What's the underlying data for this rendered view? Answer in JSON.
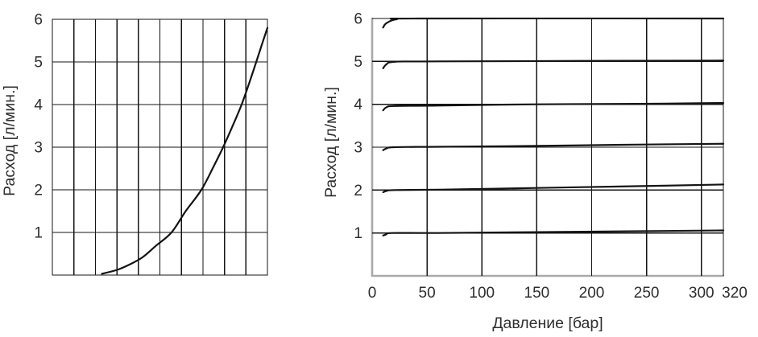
{
  "page": {
    "background": "#ffffff"
  },
  "colors": {
    "grid": "#141414",
    "curve": "#141414",
    "axis_gray": "#a9a9a9",
    "text": "#2e2e2e"
  },
  "chart_data": [
    {
      "id": "flow-curve-chart",
      "type": "line",
      "title": "",
      "xlabel": "",
      "ylabel": "Расход [л/мин.]",
      "xlim": [
        0,
        10
      ],
      "ylim": [
        0,
        6
      ],
      "grid": true,
      "x_gridlines": [
        0,
        1,
        2,
        3,
        4,
        5,
        6,
        7,
        8,
        9,
        10
      ],
      "y_gridlines": [
        0,
        1,
        2,
        3,
        4,
        5,
        6
      ],
      "x_ticks": [],
      "y_ticks": [
        1,
        2,
        3,
        4,
        5,
        6
      ],
      "legend": "none",
      "series": [
        {
          "name": "flow-curve",
          "x": [
            2.3,
            3.0,
            3.6,
            4.2,
            4.8,
            5.54,
            6.2,
            6.93,
            7.5,
            7.94,
            8.4,
            8.8,
            9.15,
            9.48,
            9.75,
            10.0
          ],
          "y": [
            0.03,
            0.12,
            0.25,
            0.42,
            0.68,
            1.0,
            1.5,
            2.0,
            2.55,
            3.0,
            3.52,
            4.0,
            4.5,
            5.0,
            5.42,
            5.8
          ]
        }
      ]
    },
    {
      "id": "flow-vs-pressure-chart",
      "type": "line",
      "title": "",
      "xlabel": "Давление [бар]",
      "ylabel": "Расход [л/мин.]",
      "xlim": [
        0,
        320
      ],
      "ylim": [
        0,
        6
      ],
      "grid": true,
      "x_gridlines": [
        50,
        100,
        150,
        200,
        250,
        300,
        320
      ],
      "y_gridlines": [
        1,
        2,
        3,
        4,
        5,
        6
      ],
      "x_ticks": [
        0,
        50,
        100,
        150,
        200,
        250,
        300,
        320
      ],
      "y_ticks": [
        1,
        2,
        3,
        4,
        5,
        6
      ],
      "legend": "none",
      "series": [
        {
          "name": "flow-6-lmin",
          "x": [
            10,
            13,
            22,
            45,
            320
          ],
          "y": [
            5.79,
            5.89,
            5.98,
            6.0,
            6.0
          ]
        },
        {
          "name": "flow-5-lmin",
          "x": [
            10,
            13,
            20,
            60,
            320
          ],
          "y": [
            4.84,
            4.93,
            4.99,
            5.0,
            5.02
          ]
        },
        {
          "name": "flow-4-lmin",
          "x": [
            10,
            13,
            20,
            60,
            150,
            240,
            320
          ],
          "y": [
            3.86,
            3.93,
            3.96,
            3.97,
            4.0,
            4.01,
            4.03
          ]
        },
        {
          "name": "flow-3-lmin",
          "x": [
            10,
            13,
            20,
            60,
            150,
            240,
            320
          ],
          "y": [
            2.93,
            2.97,
            3.0,
            3.01,
            3.03,
            3.06,
            3.08
          ]
        },
        {
          "name": "flow-2-lmin",
          "x": [
            10,
            13,
            20,
            60,
            150,
            240,
            320
          ],
          "y": [
            1.95,
            1.98,
            2.0,
            2.01,
            2.05,
            2.09,
            2.13
          ]
        },
        {
          "name": "flow-1-lmin",
          "x": [
            10,
            13,
            18,
            60,
            150,
            240,
            320
          ],
          "y": [
            0.94,
            0.97,
            1.0,
            1.0,
            1.02,
            1.04,
            1.06
          ]
        }
      ]
    }
  ]
}
